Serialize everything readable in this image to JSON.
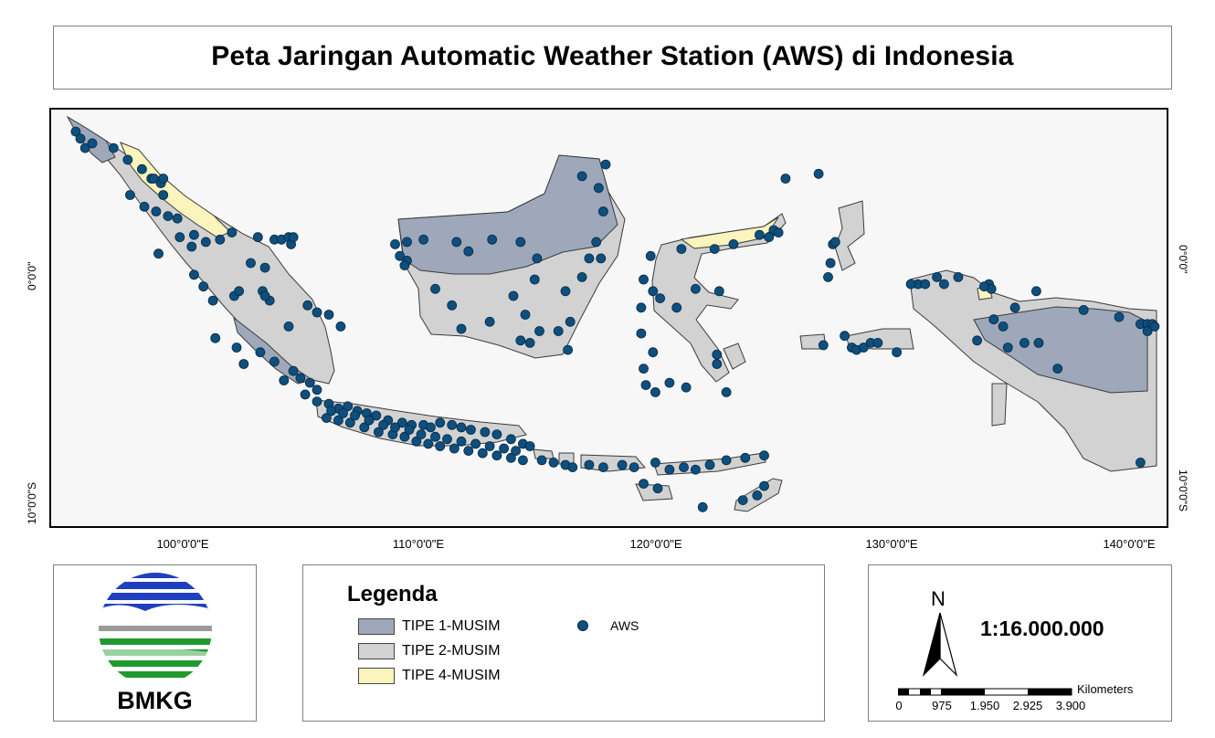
{
  "title": "Peta Jaringan Automatic Weather Station (AWS) di Indonesia",
  "axes": {
    "longitude_labels": [
      "100°0'0\"E",
      "110°0'0\"E",
      "120°0'0\"E",
      "130°0'0\"E",
      "140°0'0\"E"
    ],
    "latitude_labels": [
      "0°0'0\"",
      "10°0'0\"S"
    ]
  },
  "map": {
    "colors": {
      "tipe_1": "#9ea8ba",
      "tipe_2": "#d2d2d2",
      "tipe_4": "#fcf4bd",
      "aws": "#0e4f7e",
      "background": "#f7f7f7"
    },
    "stations": [
      [
        95.4,
        5.6
      ],
      [
        95.6,
        5.3
      ],
      [
        95.8,
        4.9
      ],
      [
        96.1,
        5.1
      ],
      [
        97.0,
        4.9
      ],
      [
        97.6,
        4.4
      ],
      [
        98.2,
        4.0
      ],
      [
        98.6,
        3.6
      ],
      [
        99.0,
        3.4
      ],
      [
        98.7,
        3.6
      ],
      [
        99.1,
        3.6
      ],
      [
        97.7,
        2.9
      ],
      [
        98.3,
        2.4
      ],
      [
        99.1,
        2.9
      ],
      [
        98.8,
        2.2
      ],
      [
        99.3,
        2.0
      ],
      [
        99.7,
        1.9
      ],
      [
        100.4,
        1.2
      ],
      [
        99.8,
        1.1
      ],
      [
        98.9,
        0.4
      ],
      [
        100.3,
        0.7
      ],
      [
        100.9,
        0.9
      ],
      [
        101.5,
        1.0
      ],
      [
        102.0,
        1.3
      ],
      [
        103.1,
        1.1
      ],
      [
        103.8,
        1.0
      ],
      [
        104.1,
        1.0
      ],
      [
        104.4,
        1.1
      ],
      [
        104.5,
        0.8
      ],
      [
        104.6,
        1.1
      ],
      [
        102.8,
        0.0
      ],
      [
        103.4,
        -0.2
      ],
      [
        100.4,
        -0.5
      ],
      [
        100.8,
        -1.0
      ],
      [
        101.2,
        -1.6
      ],
      [
        102.1,
        -1.4
      ],
      [
        102.3,
        -1.2
      ],
      [
        103.3,
        -1.2
      ],
      [
        103.6,
        -1.6
      ],
      [
        103.4,
        -1.4
      ],
      [
        104.4,
        -2.7
      ],
      [
        105.2,
        -1.8
      ],
      [
        105.6,
        -2.1
      ],
      [
        106.1,
        -2.2
      ],
      [
        106.6,
        -2.7
      ],
      [
        101.3,
        -3.2
      ],
      [
        102.2,
        -3.6
      ],
      [
        102.5,
        -4.3
      ],
      [
        103.2,
        -3.8
      ],
      [
        103.8,
        -4.2
      ],
      [
        104.6,
        -4.6
      ],
      [
        104.9,
        -4.9
      ],
      [
        105.3,
        -5.1
      ],
      [
        105.6,
        -5.4
      ],
      [
        104.2,
        -5.0
      ],
      [
        105.1,
        -5.6
      ],
      [
        105.6,
        -5.9
      ],
      [
        106.1,
        -6.0
      ],
      [
        106.5,
        -6.2
      ],
      [
        106.9,
        -6.1
      ],
      [
        107.3,
        -6.3
      ],
      [
        107.7,
        -6.4
      ],
      [
        108.1,
        -6.5
      ],
      [
        108.6,
        -6.7
      ],
      [
        109.2,
        -6.8
      ],
      [
        109.6,
        -6.9
      ],
      [
        110.1,
        -6.9
      ],
      [
        110.4,
        -7.0
      ],
      [
        110.8,
        -6.8
      ],
      [
        111.3,
        -6.9
      ],
      [
        111.7,
        -7.0
      ],
      [
        112.1,
        -7.1
      ],
      [
        112.7,
        -7.2
      ],
      [
        113.2,
        -7.3
      ],
      [
        113.8,
        -7.5
      ],
      [
        114.3,
        -7.7
      ],
      [
        114.6,
        -7.8
      ],
      [
        106.0,
        -6.6
      ],
      [
        106.5,
        -6.7
      ],
      [
        107.0,
        -6.8
      ],
      [
        107.6,
        -7.0
      ],
      [
        108.2,
        -7.2
      ],
      [
        108.8,
        -7.3
      ],
      [
        109.3,
        -7.4
      ],
      [
        109.8,
        -7.6
      ],
      [
        110.3,
        -7.7
      ],
      [
        110.8,
        -7.8
      ],
      [
        111.4,
        -7.9
      ],
      [
        112.0,
        -8.0
      ],
      [
        112.6,
        -8.1
      ],
      [
        113.2,
        -8.2
      ],
      [
        113.8,
        -8.3
      ],
      [
        114.3,
        -8.4
      ],
      [
        106.2,
        -6.3
      ],
      [
        106.7,
        -6.4
      ],
      [
        107.2,
        -6.5
      ],
      [
        107.8,
        -6.7
      ],
      [
        108.4,
        -6.9
      ],
      [
        108.9,
        -7.0
      ],
      [
        109.5,
        -7.1
      ],
      [
        110.0,
        -7.3
      ],
      [
        110.6,
        -7.4
      ],
      [
        111.1,
        -7.5
      ],
      [
        111.7,
        -7.6
      ],
      [
        112.3,
        -7.7
      ],
      [
        112.9,
        -7.8
      ],
      [
        113.5,
        -7.9
      ],
      [
        114.0,
        -8.0
      ],
      [
        115.1,
        -8.4
      ],
      [
        115.6,
        -8.5
      ],
      [
        116.1,
        -8.6
      ],
      [
        116.4,
        -8.7
      ],
      [
        117.1,
        -8.6
      ],
      [
        117.7,
        -8.7
      ],
      [
        118.5,
        -8.6
      ],
      [
        119.0,
        -8.7
      ],
      [
        119.9,
        -8.5
      ],
      [
        120.5,
        -8.8
      ],
      [
        121.1,
        -8.7
      ],
      [
        121.6,
        -8.8
      ],
      [
        122.2,
        -8.6
      ],
      [
        122.9,
        -8.4
      ],
      [
        123.7,
        -8.3
      ],
      [
        124.5,
        -8.2
      ],
      [
        120.0,
        -9.6
      ],
      [
        121.9,
        -10.4
      ],
      [
        123.6,
        -10.1
      ],
      [
        124.2,
        -9.9
      ],
      [
        124.5,
        -9.5
      ],
      [
        119.4,
        -9.4
      ],
      [
        110.1,
        1.0
      ],
      [
        109.4,
        0.9
      ],
      [
        108.9,
        0.8
      ],
      [
        109.1,
        0.3
      ],
      [
        109.4,
        0.1
      ],
      [
        109.3,
        -0.1
      ],
      [
        111.5,
        0.9
      ],
      [
        112.0,
        0.5
      ],
      [
        113.0,
        1.0
      ],
      [
        114.2,
        0.9
      ],
      [
        114.9,
        0.2
      ],
      [
        114.8,
        -0.7
      ],
      [
        113.9,
        -1.4
      ],
      [
        114.4,
        -2.2
      ],
      [
        115.0,
        -2.9
      ],
      [
        114.6,
        -3.4
      ],
      [
        114.2,
        -3.3
      ],
      [
        112.9,
        -2.5
      ],
      [
        111.7,
        -2.8
      ],
      [
        111.3,
        -1.8
      ],
      [
        110.6,
        -1.1
      ],
      [
        116.1,
        -1.2
      ],
      [
        117.1,
        0.2
      ],
      [
        116.8,
        -0.6
      ],
      [
        117.6,
        0.2
      ],
      [
        117.4,
        0.9
      ],
      [
        117.7,
        2.2
      ],
      [
        117.5,
        3.2
      ],
      [
        116.8,
        3.7
      ],
      [
        117.8,
        4.2
      ],
      [
        116.3,
        -2.5
      ],
      [
        116.2,
        -3.7
      ],
      [
        115.8,
        -2.9
      ],
      [
        124.9,
        1.4
      ],
      [
        124.3,
        1.2
      ],
      [
        124.7,
        1.1
      ],
      [
        125.1,
        1.3
      ],
      [
        123.2,
        0.8
      ],
      [
        122.4,
        0.6
      ],
      [
        121.0,
        0.6
      ],
      [
        119.7,
        0.3
      ],
      [
        119.4,
        -0.7
      ],
      [
        119.8,
        -1.2
      ],
      [
        120.1,
        -1.5
      ],
      [
        120.8,
        -1.9
      ],
      [
        121.6,
        -1.1
      ],
      [
        122.6,
        -1.2
      ],
      [
        119.3,
        -1.9
      ],
      [
        119.3,
        -3.0
      ],
      [
        119.8,
        -3.8
      ],
      [
        119.4,
        -4.5
      ],
      [
        119.5,
        -5.2
      ],
      [
        119.9,
        -5.5
      ],
      [
        120.5,
        -5.1
      ],
      [
        121.2,
        -5.3
      ],
      [
        122.5,
        -4.3
      ],
      [
        122.9,
        -5.5
      ],
      [
        122.5,
        -3.9
      ],
      [
        125.4,
        3.6
      ],
      [
        126.8,
        3.8
      ],
      [
        127.4,
        0.8
      ],
      [
        127.5,
        0.9
      ],
      [
        127.3,
        0.0
      ],
      [
        127.2,
        -0.6
      ],
      [
        127.9,
        -3.1
      ],
      [
        128.2,
        -3.6
      ],
      [
        128.4,
        -3.7
      ],
      [
        128.7,
        -3.6
      ],
      [
        129.0,
        -3.4
      ],
      [
        129.3,
        -3.4
      ],
      [
        130.1,
        -3.8
      ],
      [
        131.0,
        -0.9
      ],
      [
        131.3,
        -0.9
      ],
      [
        132.1,
        -0.9
      ],
      [
        134.0,
        -0.9
      ],
      [
        134.1,
        -1.1
      ],
      [
        134.2,
        -2.4
      ],
      [
        135.5,
        -3.4
      ],
      [
        136.0,
        -1.2
      ],
      [
        136.9,
        -4.5
      ],
      [
        138.0,
        -2.0
      ],
      [
        140.4,
        -2.6
      ],
      [
        140.7,
        -2.6
      ],
      [
        140.9,
        -2.6
      ],
      [
        140.7,
        -2.9
      ],
      [
        141.0,
        -2.7
      ],
      [
        140.4,
        -8.5
      ],
      [
        127.0,
        -3.5
      ],
      [
        132.7,
        -0.6
      ],
      [
        130.7,
        -0.9
      ],
      [
        133.5,
        -3.3
      ],
      [
        131.8,
        -0.6
      ],
      [
        139.5,
        -2.3
      ],
      [
        135.1,
        -1.9
      ],
      [
        133.8,
        -1.0
      ],
      [
        136.1,
        -3.4
      ],
      [
        134.6,
        -2.7
      ],
      [
        134.8,
        -3.6
      ]
    ]
  },
  "legend": {
    "title": "Legenda",
    "items": [
      "TIPE 1-MUSIM",
      "TIPE 2-MUSIM",
      "TIPE 4-MUSIM"
    ],
    "aws_label": "AWS"
  },
  "logo": {
    "text": "BMKG"
  },
  "scale": {
    "north": "N",
    "ratio": "1:16.000.000",
    "unit": "Kilometers",
    "ticks": [
      "0",
      "975",
      "1.950",
      "2.925",
      "3.900"
    ]
  }
}
